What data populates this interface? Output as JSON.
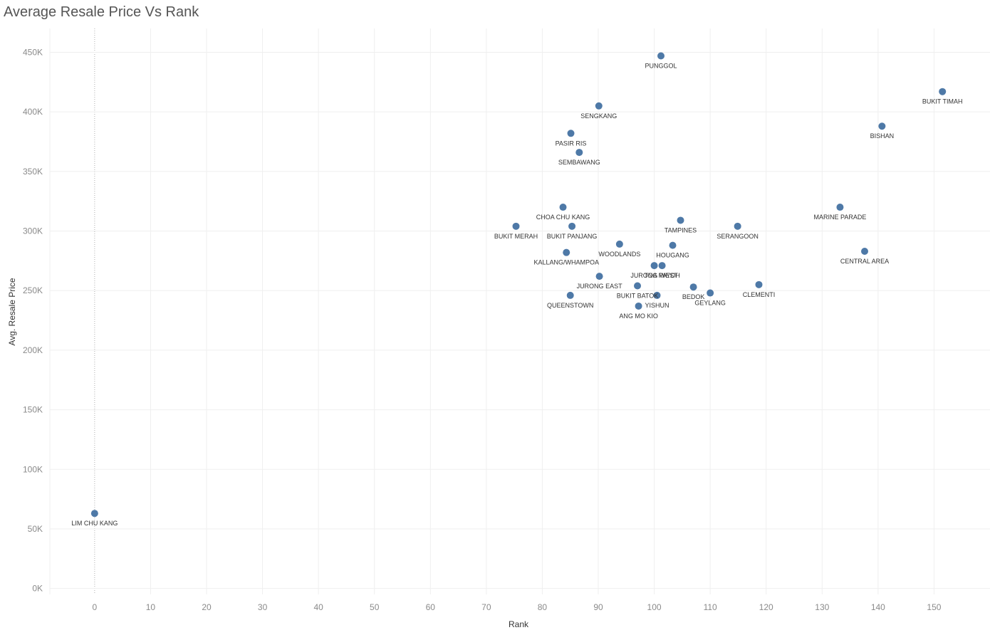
{
  "colors": {
    "point": "#4e79a7",
    "grid": "#efefef",
    "axis_label": "#8a8a8a",
    "zero_line": "#b0b0b0"
  },
  "chart_data": {
    "type": "scatter",
    "title": "Average Resale Price Vs Rank",
    "xlabel": "Rank",
    "ylabel": "Avg. Resale Price",
    "xlim": [
      -8,
      160
    ],
    "ylim": [
      -5000,
      470000
    ],
    "x_ticks": [
      0,
      10,
      20,
      30,
      40,
      50,
      60,
      70,
      80,
      90,
      100,
      110,
      120,
      130,
      140,
      150
    ],
    "y_ticks": [
      0,
      50000,
      100000,
      150000,
      200000,
      250000,
      300000,
      350000,
      400000,
      450000
    ],
    "x_tick_labels": [
      "0",
      "10",
      "20",
      "30",
      "40",
      "50",
      "60",
      "70",
      "80",
      "90",
      "100",
      "110",
      "120",
      "130",
      "140",
      "150"
    ],
    "y_tick_labels": [
      "0K",
      "50K",
      "100K",
      "150K",
      "200K",
      "250K",
      "300K",
      "350K",
      "400K",
      "450K"
    ],
    "grid": true,
    "zero_line_x": true,
    "points": [
      {
        "label": "PUNGGOL",
        "x": 101.2,
        "y": 447000
      },
      {
        "label": "BUKIT TIMAH",
        "x": 151.5,
        "y": 417000
      },
      {
        "label": "SENGKANG",
        "x": 90.1,
        "y": 405000
      },
      {
        "label": "BISHAN",
        "x": 140.7,
        "y": 388000
      },
      {
        "label": "PASIR RIS",
        "x": 85.1,
        "y": 382000
      },
      {
        "label": "SEMBAWANG",
        "x": 86.6,
        "y": 366000
      },
      {
        "label": "CHOA CHU KANG",
        "x": 83.7,
        "y": 320000
      },
      {
        "label": "MARINE PARADE",
        "x": 133.2,
        "y": 320000
      },
      {
        "label": "TAMPINES",
        "x": 104.7,
        "y": 309000
      },
      {
        "label": "BUKIT MERAH",
        "x": 75.3,
        "y": 304000
      },
      {
        "label": "BUKIT PANJANG",
        "x": 85.3,
        "y": 304000
      },
      {
        "label": "SERANGOON",
        "x": 114.9,
        "y": 304000
      },
      {
        "label": "WOODLANDS",
        "x": 93.8,
        "y": 289000
      },
      {
        "label": "HOUGANG",
        "x": 103.3,
        "y": 288000
      },
      {
        "label": "CENTRAL AREA",
        "x": 137.6,
        "y": 283000
      },
      {
        "label": "KALLANG/WHAMPOA",
        "x": 84.3,
        "y": 282000
      },
      {
        "label": "JURONG WEST",
        "x": 100.0,
        "y": 271000
      },
      {
        "label": "TOA PAYOH",
        "x": 101.4,
        "y": 271000
      },
      {
        "label": "JURONG EAST",
        "x": 90.2,
        "y": 262000
      },
      {
        "label": "CLEMENTI",
        "x": 118.7,
        "y": 255000
      },
      {
        "label": "BUKIT BATOK",
        "x": 97.0,
        "y": 254000
      },
      {
        "label": "BEDOK",
        "x": 107.0,
        "y": 253000
      },
      {
        "label": "GEYLANG",
        "x": 110.0,
        "y": 248000
      },
      {
        "label": "QUEENSTOWN",
        "x": 85.0,
        "y": 246000
      },
      {
        "label": "YISHUN",
        "x": 100.5,
        "y": 246000
      },
      {
        "label": "ANG MO KIO",
        "x": 97.2,
        "y": 237000
      },
      {
        "label": "LIM CHU KANG",
        "x": 0.0,
        "y": 63000
      }
    ]
  }
}
